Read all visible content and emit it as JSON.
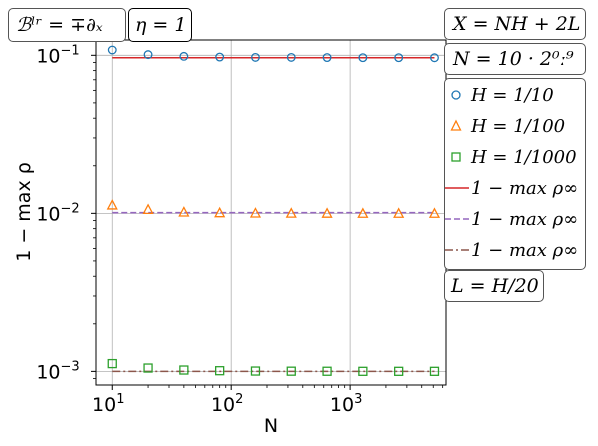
{
  "annotations": {
    "boundary": "ℬˡʳ = ∓∂ₓ",
    "eta": "η = 1",
    "x_def": "X = NH + 2L",
    "n_def": "N = 10 · 2⁰ː⁹",
    "l_def": "L = H/20"
  },
  "colors": {
    "h10": "#1f77b4",
    "h100": "#ff7f0e",
    "h1000": "#2ca02c",
    "line1": "#d62728",
    "line2": "#9467bd",
    "line3": "#8c564b",
    "grid": "#b0b0b0"
  },
  "chart_data": {
    "type": "scatter",
    "xlabel": "N",
    "ylabel": "1 − max ρ",
    "xscale": "log",
    "yscale": "log",
    "xlim": [
      7.3,
      6400
    ],
    "ylim": [
      0.00082,
      0.125
    ],
    "grid": true,
    "legend_position": "right",
    "x_ticks": [
      {
        "value": 10,
        "base": "10",
        "exp": "1"
      },
      {
        "value": 100,
        "base": "10",
        "exp": "2"
      },
      {
        "value": 1000,
        "base": "10",
        "exp": "3"
      }
    ],
    "y_ticks": [
      {
        "value": 0.1,
        "base": "10",
        "exp": "−1"
      },
      {
        "value": 0.01,
        "base": "10",
        "exp": "−2"
      },
      {
        "value": 0.001,
        "base": "10",
        "exp": "−3"
      }
    ],
    "x": [
      10,
      20,
      40,
      80,
      160,
      320,
      640,
      1280,
      2560,
      5120
    ],
    "series": [
      {
        "name": "H = 1/10",
        "marker": "circle",
        "color_key": "h10",
        "values": [
          0.108,
          0.101,
          0.0985,
          0.0975,
          0.097,
          0.097,
          0.0968,
          0.0966,
          0.0966,
          0.0965
        ]
      },
      {
        "name": "H = 1/100",
        "marker": "triangle",
        "color_key": "h100",
        "values": [
          0.0113,
          0.0106,
          0.0102,
          0.0101,
          0.01005,
          0.01003,
          0.01002,
          0.01001,
          0.01001,
          0.01001
        ]
      },
      {
        "name": "H = 1/1000",
        "marker": "square",
        "color_key": "h1000",
        "values": [
          0.00112,
          0.00105,
          0.00102,
          0.00101,
          0.001005,
          0.001003,
          0.001002,
          0.001001,
          0.001001,
          0.001001
        ]
      }
    ],
    "reference_lines": [
      {
        "name": "1 − max ρ∞",
        "style": "solid",
        "color_key": "line1",
        "value": 0.0965
      },
      {
        "name": "1 − max ρ∞",
        "style": "dashed",
        "color_key": "line2",
        "value": 0.0101
      },
      {
        "name": "1 − max ρ∞",
        "style": "dashdot",
        "color_key": "line3",
        "value": 0.001
      }
    ]
  }
}
